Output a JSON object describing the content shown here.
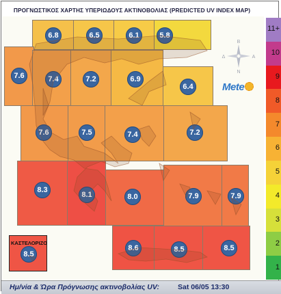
{
  "title": "ΠΡΟΓΝΩΣΤΙΚΟΣ ΧΑΡΤΗΣ ΥΠΕΡΙΩΔΟΥΣ ΑΚΤΙΝΟΒΟΛΙΑΣ (PREDICTED UV INDEX MAP)",
  "inset_label": "ΚΑΣΤΕΛΟΡΙΖΟ",
  "logo_text": "Mete",
  "compass": {
    "n": "Β",
    "s": "Ν",
    "e": "Α",
    "w": "Δ"
  },
  "footer": {
    "label": "Ημ/νία & Ώρα Πρόγνωσης ακτινοβολίας UV:",
    "datetime": "Sat 06/05 13:30"
  },
  "scale": {
    "labels": [
      "11+",
      "10",
      "9",
      "8",
      "7",
      "6",
      "5",
      "4",
      "3",
      "2",
      "1"
    ],
    "colors": [
      "#a07cc4",
      "#c23b8c",
      "#e8191e",
      "#f05a28",
      "#f4892c",
      "#f7b234",
      "#f5d238",
      "#f3ea2a",
      "#d6e03a",
      "#8ecd45",
      "#33b24a"
    ]
  },
  "grid_values": [
    {
      "id": "r1c1",
      "value": "6.8",
      "color": "#f5c04a"
    },
    {
      "id": "r1c2",
      "value": "6.5",
      "color": "#f6c649"
    },
    {
      "id": "r1c3",
      "value": "6.1",
      "color": "#f7cb47"
    },
    {
      "id": "r1c4",
      "value": "5.8",
      "color": "#f3d93e"
    },
    {
      "id": "r2c0",
      "value": "7.6",
      "color": "#f2994a"
    },
    {
      "id": "r2c1",
      "value": "7.4",
      "color": "#f3a04a"
    },
    {
      "id": "r2c2",
      "value": "7.2",
      "color": "#f3a74b"
    },
    {
      "id": "r2c3",
      "value": "6.9",
      "color": "#f5b945"
    },
    {
      "id": "r2c4",
      "value": "6.4",
      "color": "#f6c649"
    },
    {
      "id": "r3c1",
      "value": "7.6",
      "color": "#f2994a"
    },
    {
      "id": "r3c2",
      "value": "7.5",
      "color": "#f29c4a"
    },
    {
      "id": "r3c3",
      "value": "7.4",
      "color": "#f3a04a"
    },
    {
      "id": "r3c4",
      "value": "7.2",
      "color": "#f3a74b"
    },
    {
      "id": "r4c0",
      "value": "8.3",
      "color": "#ef5a45"
    },
    {
      "id": "r4c1",
      "value": "8.1",
      "color": "#ee4f45"
    },
    {
      "id": "r4c2",
      "value": "8.0",
      "color": "#f06a46"
    },
    {
      "id": "r4c3",
      "value": "7.9",
      "color": "#f17a47"
    },
    {
      "id": "r4c4",
      "value": "7.9",
      "color": "#f17a47"
    },
    {
      "id": "kast",
      "value": "8.5",
      "color": "#ef5545"
    },
    {
      "id": "r5c1",
      "value": "8.6",
      "color": "#ef5344"
    },
    {
      "id": "r5c2",
      "value": "8.5",
      "color": "#ef5545"
    },
    {
      "id": "r5c3",
      "value": "8.5",
      "color": "#ef5545"
    }
  ]
}
